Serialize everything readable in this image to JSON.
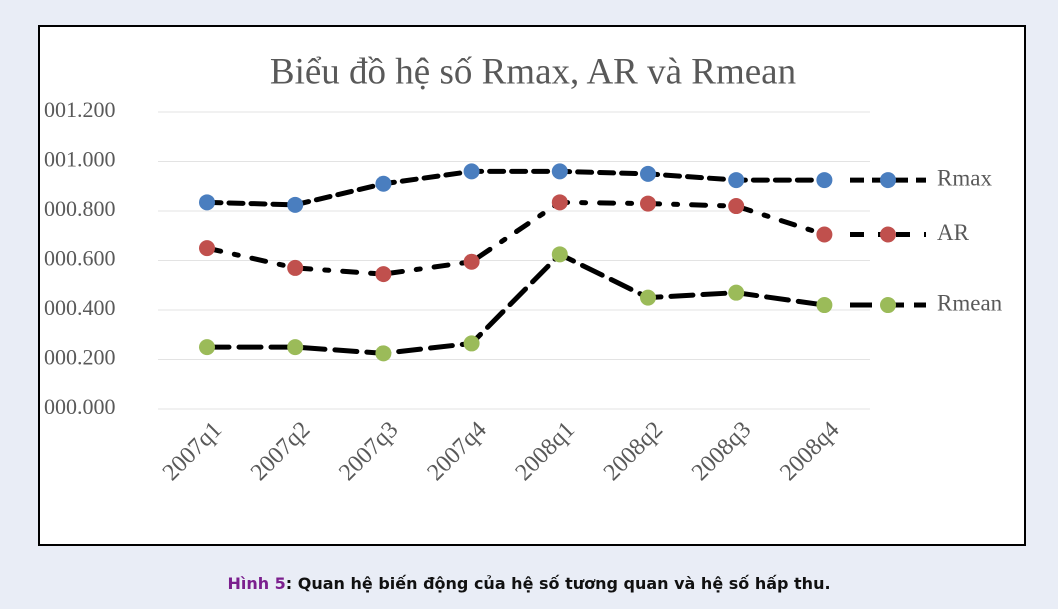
{
  "chart_data": {
    "type": "line",
    "title": "Biểu đồ hệ số Rmax, AR và Rmean",
    "categories": [
      "2007q1",
      "2007q2",
      "2007q3",
      "2007q4",
      "2008q1",
      "2008q2",
      "2008q3",
      "2008q4"
    ],
    "series": [
      {
        "name": "Rmax",
        "color": "#4a7ebf",
        "dash": "14 8",
        "values": [
          0.835,
          0.825,
          0.91,
          0.96,
          0.96,
          0.95,
          0.925,
          0.925
        ]
      },
      {
        "name": "AR",
        "color": "#c0504d",
        "dash": "14 14 4 14",
        "values": [
          0.65,
          0.57,
          0.545,
          0.595,
          0.835,
          0.83,
          0.82,
          0.705
        ]
      },
      {
        "name": "Rmean",
        "color": "#9bbb59",
        "dash": "22 10",
        "values": [
          0.25,
          0.25,
          0.225,
          0.265,
          0.625,
          0.45,
          0.47,
          0.42
        ]
      }
    ],
    "line_color": "#000000",
    "ylim": [
      0,
      1.2
    ],
    "yticks": [
      {
        "value": 0,
        "label": "000.000"
      },
      {
        "value": 0.2,
        "label": "000.200"
      },
      {
        "value": 0.4,
        "label": "000.400"
      },
      {
        "value": 0.6,
        "label": "000.600"
      },
      {
        "value": 0.8,
        "label": "000.800"
      },
      {
        "value": 1.0,
        "label": "001.000"
      },
      {
        "value": 1.2,
        "label": "001.200"
      }
    ],
    "grid": true,
    "legend": "right"
  },
  "caption": {
    "label": "Hình 5",
    "text": ": Quan hệ biến động của hệ số tương quan và hệ số hấp thu."
  }
}
